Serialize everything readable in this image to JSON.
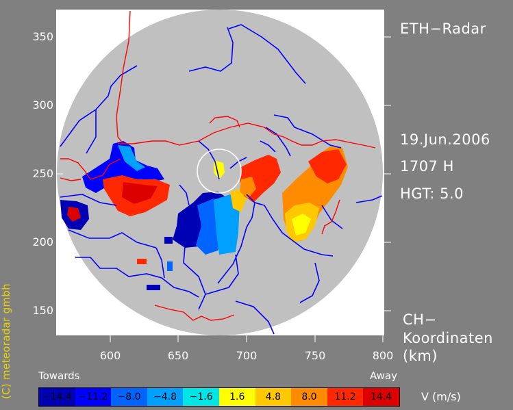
{
  "header": {
    "title": "ETH−Radar"
  },
  "info": {
    "date": "19.Jun.2006",
    "time": "1707 H",
    "height": "HGT: 5.0"
  },
  "coords": {
    "line1": "CH−",
    "line2": "Koordinaten",
    "line3": "(km)"
  },
  "axes": {
    "y_ticks": [
      "350",
      "300",
      "250",
      "200",
      "150"
    ],
    "x_ticks": [
      "600",
      "650",
      "700",
      "750",
      "800"
    ]
  },
  "legend": {
    "left_label": "Towards",
    "right_label": "Away",
    "unit": "V  (m/s)",
    "classes": [
      {
        "label": "−14.4",
        "color": "#0000b4"
      },
      {
        "label": "−11.2",
        "color": "#0000ff"
      },
      {
        "label": "−8.0",
        "color": "#0064ff"
      },
      {
        "label": "−4.8",
        "color": "#00a0ff"
      },
      {
        "label": "−1.6",
        "color": "#00e6e6"
      },
      {
        "label": "1.6",
        "color": "#ffff00"
      },
      {
        "label": "4.8",
        "color": "#ffc800"
      },
      {
        "label": "8.0",
        "color": "#ff8c00"
      },
      {
        "label": "11.2",
        "color": "#ff2800"
      },
      {
        "label": "14.4",
        "color": "#dc0000"
      }
    ]
  },
  "credit": "(C)  meteoradar gmbh",
  "colors": {
    "background": "#808080",
    "plot": "#ffffff",
    "scan": "#c0c0c0",
    "rivers": "#0000ff",
    "borders": "#ff0000"
  }
}
